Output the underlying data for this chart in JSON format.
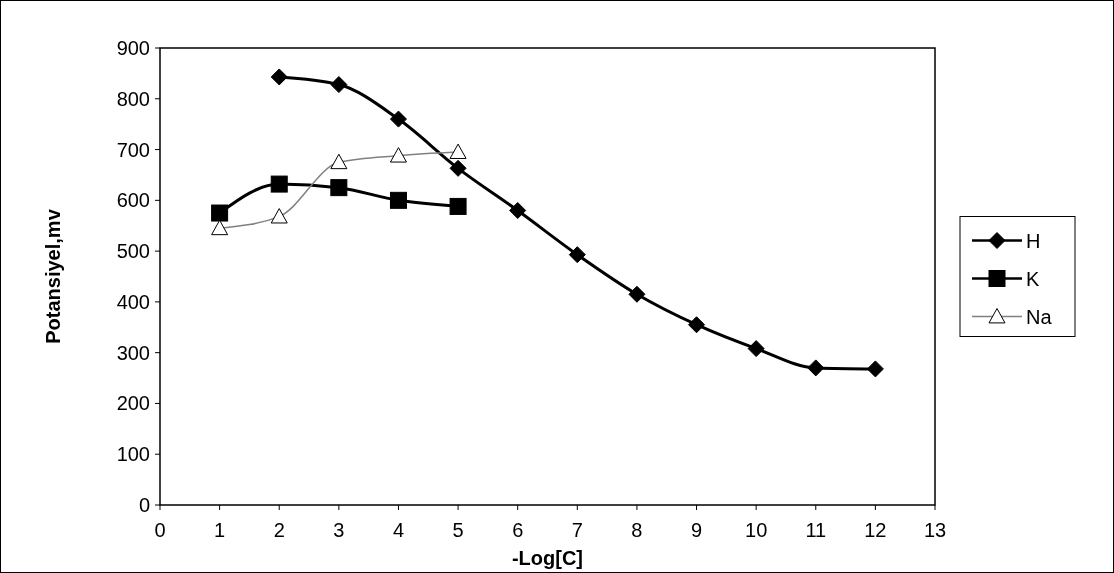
{
  "chart_data": {
    "type": "line",
    "xlabel": "-Log[C]",
    "ylabel": "Potansiyel,mv",
    "xlim": [
      0,
      13
    ],
    "xticks": [
      0,
      1,
      2,
      3,
      4,
      5,
      6,
      7,
      8,
      9,
      10,
      11,
      12,
      13
    ],
    "ylim": [
      0,
      900
    ],
    "yticks": [
      0,
      100,
      200,
      300,
      400,
      500,
      600,
      700,
      800,
      900
    ],
    "grid": false,
    "legend": "right",
    "line_style": "solid",
    "series": [
      {
        "name": "H",
        "color": "#000000",
        "marker": "diamond",
        "x": [
          2,
          3,
          4,
          5,
          6,
          7,
          8,
          9,
          10,
          11,
          12
        ],
        "values": [
          843,
          828,
          760,
          663,
          580,
          493,
          415,
          355,
          308,
          270,
          268
        ]
      },
      {
        "name": "K",
        "color": "#000000",
        "marker": "square",
        "x": [
          1,
          2,
          3,
          4,
          5
        ],
        "values": [
          575,
          632,
          625,
          600,
          588
        ]
      },
      {
        "name": "Na",
        "color": "#808080",
        "marker": "triangle",
        "x": [
          1,
          2,
          3,
          4,
          5
        ],
        "values": [
          545,
          568,
          675,
          688,
          695
        ]
      }
    ]
  }
}
